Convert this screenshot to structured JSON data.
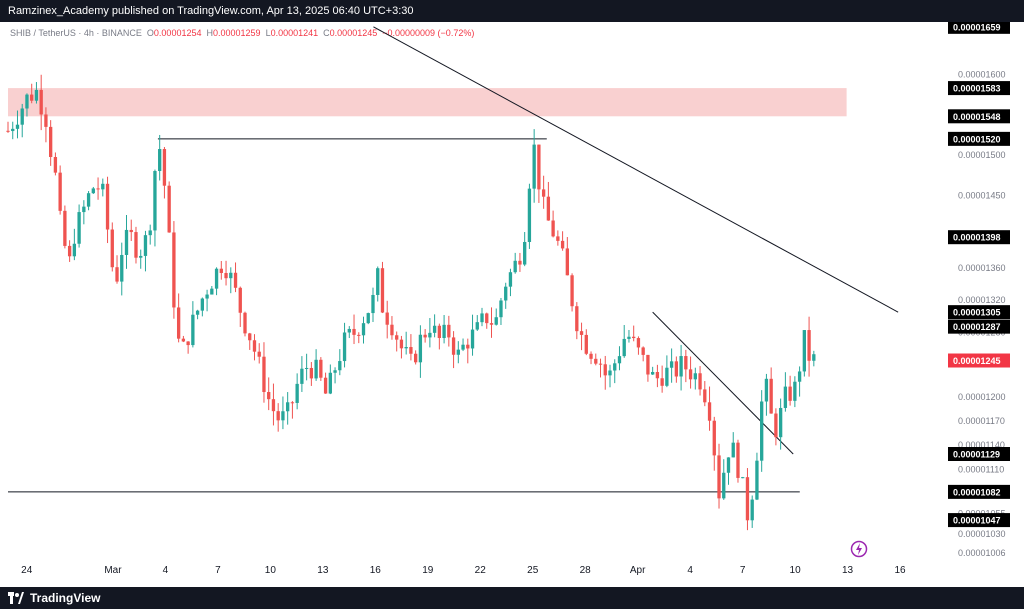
{
  "header": {
    "published_text": "Ramzinex_Academy published on TradingView.com, Apr 13, 2025 06:40 UTC+3:30"
  },
  "symbol_info": {
    "symbol": "SHIB / TetherUS · 4h · BINANCE",
    "open_label": "O",
    "open_value": "0.00001254",
    "high_label": "H",
    "high_value": "0.00001259",
    "low_label": "L",
    "low_value": "0.00001241",
    "close_label": "C",
    "close_value": "0.00001245",
    "change": "−0.00000009 (−0.72%)"
  },
  "footer": {
    "brand": "TradingView"
  },
  "colors": {
    "up": "#26a69a",
    "down": "#ef5350",
    "zone": "#f8c8c8",
    "label_bg": "#000000",
    "current_bg": "#f23645",
    "bar_bg": "#131722"
  },
  "chart_data": {
    "type": "candlestick",
    "interval": "4h",
    "symbol": "SHIBUSDT",
    "ylim": [
      9.95e-06,
      1.665e-05
    ],
    "x_ticks": [
      {
        "label": "24",
        "x": 0.02
      },
      {
        "label": "Mar",
        "x": 0.112
      },
      {
        "label": "4",
        "x": 0.168
      },
      {
        "label": "7",
        "x": 0.224
      },
      {
        "label": "10",
        "x": 0.28
      },
      {
        "label": "13",
        "x": 0.336
      },
      {
        "label": "16",
        "x": 0.392
      },
      {
        "label": "19",
        "x": 0.448
      },
      {
        "label": "22",
        "x": 0.504
      },
      {
        "label": "25",
        "x": 0.56
      },
      {
        "label": "28",
        "x": 0.616
      },
      {
        "label": "Apr",
        "x": 0.672
      },
      {
        "label": "4",
        "x": 0.728
      },
      {
        "label": "7",
        "x": 0.784
      },
      {
        "label": "10",
        "x": 0.84
      },
      {
        "label": "13",
        "x": 0.896
      },
      {
        "label": "16",
        "x": 0.952
      }
    ],
    "y_ticks": [
      "0.00001600",
      "0.00001550",
      "0.00001500",
      "0.00001450",
      "0.00001400",
      "0.00001360",
      "0.00001320",
      "0.00001280",
      "0.00001240",
      "0.00001200",
      "0.00001170",
      "0.00001140",
      "0.00001110",
      "0.00001080",
      "0.00001055",
      "0.00001030",
      "0.00001006"
    ],
    "price_labels": [
      {
        "value": "0.00001659",
        "num": 1.659e-05
      },
      {
        "value": "0.00001583",
        "num": 1.583e-05
      },
      {
        "value": "0.00001548",
        "num": 1.548e-05
      },
      {
        "value": "0.00001520",
        "num": 1.52e-05
      },
      {
        "value": "0.00001398",
        "num": 1.398e-05
      },
      {
        "value": "0.00001305",
        "num": 1.305e-05
      },
      {
        "value": "0.00001287",
        "num": 1.287e-05
      },
      {
        "value": "0.00001129",
        "num": 1.129e-05
      },
      {
        "value": "0.00001082",
        "num": 1.082e-05
      },
      {
        "value": "0.00001047",
        "num": 1.047e-05
      }
    ],
    "current_price": "0.00001245",
    "resistance_zone": [
      1.548e-05,
      1.583e-05
    ],
    "horizontal_levels": [
      {
        "price": 1.52e-05,
        "from": 0.16,
        "to": 0.575
      },
      {
        "price": 1.082e-05,
        "from": 0.0,
        "to": 0.845
      }
    ],
    "trendlines": [
      {
        "from": [
          0.39,
          1.659e-05
        ],
        "to": [
          0.95,
          1.305e-05
        ]
      },
      {
        "from": [
          0.688,
          1.305e-05
        ],
        "to": [
          0.838,
          1.129e-05
        ]
      }
    ],
    "series": [
      [
        0.0,
        1.53e-05
      ],
      [
        0.01,
        1.55e-05
      ],
      [
        0.02,
        1.57e-05
      ],
      [
        0.03,
        1.58e-05
      ],
      [
        0.04,
        1.55e-05
      ],
      [
        0.045,
        1.51e-05
      ],
      [
        0.05,
        1.48e-05
      ],
      [
        0.055,
        1.42e-05
      ],
      [
        0.06,
        1.39e-05
      ],
      [
        0.065,
        1.36e-05
      ],
      [
        0.07,
        1.4e-05
      ],
      [
        0.08,
        1.43e-05
      ],
      [
        0.09,
        1.46e-05
      ],
      [
        0.1,
        1.46e-05
      ],
      [
        0.105,
        1.42e-05
      ],
      [
        0.11,
        1.37e-05
      ],
      [
        0.115,
        1.34e-05
      ],
      [
        0.12,
        1.38e-05
      ],
      [
        0.13,
        1.4e-05
      ],
      [
        0.14,
        1.38e-05
      ],
      [
        0.15,
        1.4e-05
      ],
      [
        0.155,
        1.46e-05
      ],
      [
        0.16,
        1.52e-05
      ],
      [
        0.165,
        1.49e-05
      ],
      [
        0.17,
        1.42e-05
      ],
      [
        0.175,
        1.35e-05
      ],
      [
        0.18,
        1.28e-05
      ],
      [
        0.185,
        1.25e-05
      ],
      [
        0.19,
        1.27e-05
      ],
      [
        0.2,
        1.3e-05
      ],
      [
        0.21,
        1.33e-05
      ],
      [
        0.22,
        1.35e-05
      ],
      [
        0.23,
        1.37e-05
      ],
      [
        0.24,
        1.34e-05
      ],
      [
        0.25,
        1.3e-05
      ],
      [
        0.26,
        1.27e-05
      ],
      [
        0.27,
        1.23e-05
      ],
      [
        0.28,
        1.19e-05
      ],
      [
        0.29,
        1.17e-05
      ],
      [
        0.3,
        1.18e-05
      ],
      [
        0.305,
        1.2e-05
      ],
      [
        0.31,
        1.22e-05
      ],
      [
        0.32,
        1.24e-05
      ],
      [
        0.33,
        1.23e-05
      ],
      [
        0.34,
        1.2e-05
      ],
      [
        0.35,
        1.24e-05
      ],
      [
        0.36,
        1.27e-05
      ],
      [
        0.37,
        1.28e-05
      ],
      [
        0.38,
        1.3e-05
      ],
      [
        0.39,
        1.32e-05
      ],
      [
        0.395,
        1.35e-05
      ],
      [
        0.4,
        1.31e-05
      ],
      [
        0.41,
        1.29e-05
      ],
      [
        0.42,
        1.26e-05
      ],
      [
        0.43,
        1.24e-05
      ],
      [
        0.44,
        1.27e-05
      ],
      [
        0.45,
        1.29e-05
      ],
      [
        0.46,
        1.27e-05
      ],
      [
        0.47,
        1.28e-05
      ],
      [
        0.48,
        1.25e-05
      ],
      [
        0.49,
        1.27e-05
      ],
      [
        0.5,
        1.28e-05
      ],
      [
        0.51,
        1.3e-05
      ],
      [
        0.52,
        1.29e-05
      ],
      [
        0.53,
        1.34e-05
      ],
      [
        0.54,
        1.36e-05
      ],
      [
        0.55,
        1.39e-05
      ],
      [
        0.555,
        1.45e-05
      ],
      [
        0.56,
        1.52e-05
      ],
      [
        0.565,
        1.48e-05
      ],
      [
        0.57,
        1.44e-05
      ],
      [
        0.575,
        1.42e-05
      ],
      [
        0.58,
        1.41e-05
      ],
      [
        0.59,
        1.38e-05
      ],
      [
        0.6,
        1.33e-05
      ],
      [
        0.61,
        1.28e-05
      ],
      [
        0.62,
        1.26e-05
      ],
      [
        0.63,
        1.25e-05
      ],
      [
        0.64,
        1.22e-05
      ],
      [
        0.65,
        1.25e-05
      ],
      [
        0.66,
        1.28e-05
      ],
      [
        0.67,
        1.26e-05
      ],
      [
        0.68,
        1.24e-05
      ],
      [
        0.69,
        1.22e-05
      ],
      [
        0.7,
        1.23e-05
      ],
      [
        0.71,
        1.23e-05
      ],
      [
        0.72,
        1.24e-05
      ],
      [
        0.73,
        1.23e-05
      ],
      [
        0.74,
        1.22e-05
      ],
      [
        0.75,
        1.18e-05
      ],
      [
        0.755,
        1.12e-05
      ],
      [
        0.76,
        1.07e-05
      ],
      [
        0.765,
        1.12e-05
      ],
      [
        0.77,
        1.14e-05
      ],
      [
        0.775,
        1.13e-05
      ],
      [
        0.78,
        1.11e-05
      ],
      [
        0.785,
        1.08e-05
      ],
      [
        0.79,
        1.05e-05
      ],
      [
        0.795,
        1.09e-05
      ],
      [
        0.8,
        1.14e-05
      ],
      [
        0.805,
        1.2e-05
      ],
      [
        0.81,
        1.21e-05
      ],
      [
        0.815,
        1.17e-05
      ],
      [
        0.82,
        1.16e-05
      ],
      [
        0.83,
        1.2e-05
      ],
      [
        0.84,
        1.21e-05
      ],
      [
        0.845,
        1.24e-05
      ],
      [
        0.85,
        1.27e-05
      ],
      [
        0.855,
        1.25e-05
      ],
      [
        0.86,
        1.245e-05
      ]
    ]
  }
}
